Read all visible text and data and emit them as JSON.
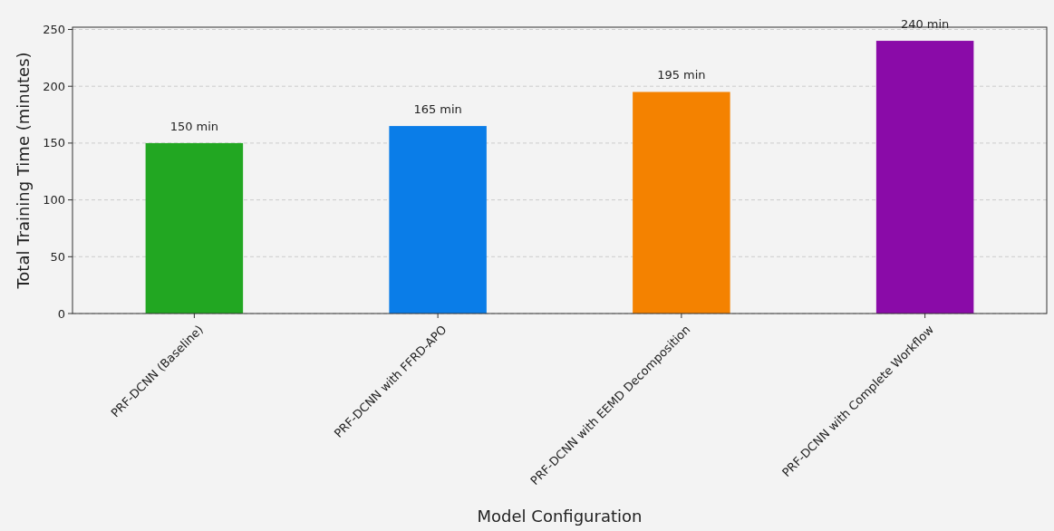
{
  "chart_data": {
    "type": "bar",
    "xlabel": "Model Configuration",
    "ylabel": "Total Training Time (minutes)",
    "categories": [
      "PRF-DCNN (Baseline)",
      "PRF-DCNN with FFRD-APO",
      "PRF-DCNN with EEMD Decomposition",
      "PRF-DCNN with Complete Workflow"
    ],
    "values": [
      150,
      165,
      195,
      240
    ],
    "colors": [
      "#22a722",
      "#0a7de8",
      "#f48200",
      "#8a0ba8"
    ],
    "value_labels": [
      "150 min",
      "165 min",
      "195 min",
      "240 min"
    ],
    "ylim": [
      0,
      252
    ],
    "yticks": [
      0,
      50,
      100,
      150,
      200,
      250
    ],
    "grid": "y"
  }
}
